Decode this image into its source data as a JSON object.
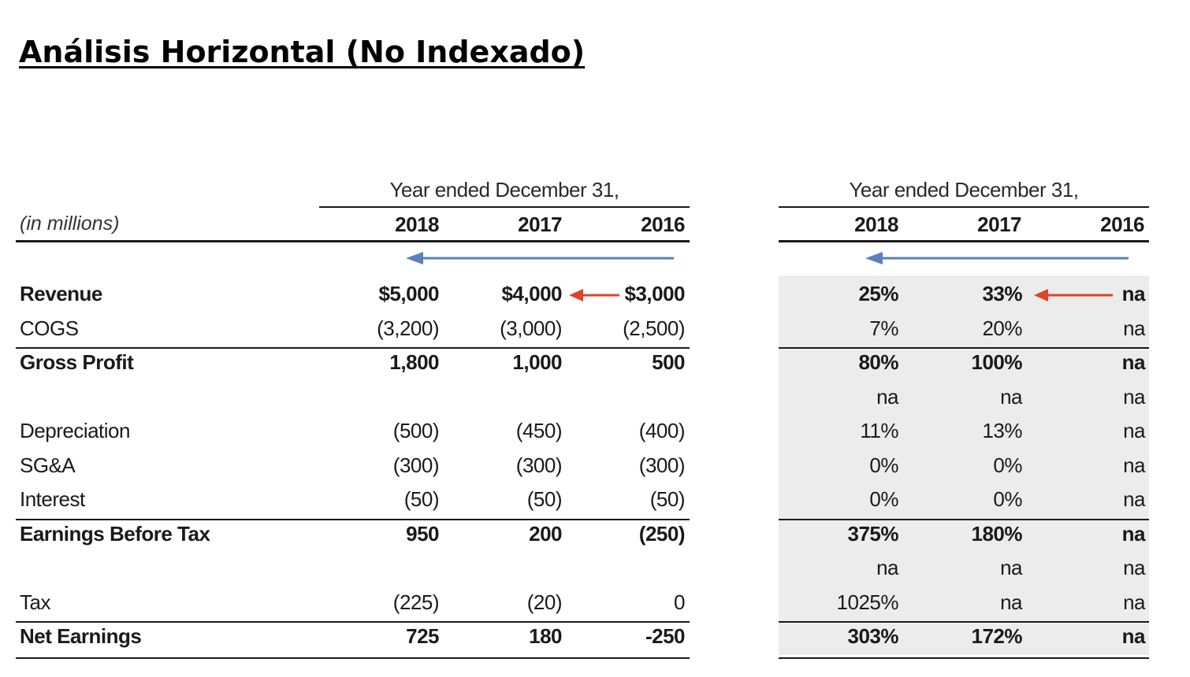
{
  "title": "Análisis Horizontal (No Indexado)",
  "left_table": {
    "group_header": "Year ended December 31,",
    "units_label": "(in millions)",
    "years": [
      "2018",
      "2017",
      "2016"
    ]
  },
  "right_table": {
    "group_header": "Year ended December 31,",
    "years": [
      "2018",
      "2017",
      "2016"
    ]
  },
  "rows": [
    {
      "label": "Revenue",
      "bold": true,
      "values": [
        "$5,000",
        "$4,000",
        "$3,000"
      ],
      "pct": [
        "25%",
        "33%",
        "na"
      ]
    },
    {
      "label": "COGS",
      "bold": false,
      "values": [
        "(3,200)",
        "(3,000)",
        "(2,500)"
      ],
      "pct": [
        "7%",
        "20%",
        "na"
      ]
    },
    {
      "label": "Gross Profit",
      "bold": true,
      "values": [
        "1,800",
        "1,000",
        "500"
      ],
      "pct": [
        "80%",
        "100%",
        "na"
      ]
    },
    {
      "label": "",
      "bold": false,
      "values": [
        "",
        "",
        ""
      ],
      "pct": [
        "na",
        "na",
        "na"
      ]
    },
    {
      "label": "Depreciation",
      "bold": false,
      "values": [
        "(500)",
        "(450)",
        "(400)"
      ],
      "pct": [
        "11%",
        "13%",
        "na"
      ]
    },
    {
      "label": "SG&A",
      "bold": false,
      "values": [
        "(300)",
        "(300)",
        "(300)"
      ],
      "pct": [
        "0%",
        "0%",
        "na"
      ]
    },
    {
      "label": "Interest",
      "bold": false,
      "values": [
        "(50)",
        "(50)",
        "(50)"
      ],
      "pct": [
        "0%",
        "0%",
        "na"
      ]
    },
    {
      "label": "Earnings Before Tax",
      "bold": true,
      "values": [
        "950",
        "200",
        "(250)"
      ],
      "pct": [
        "375%",
        "180%",
        "na"
      ]
    },
    {
      "label": "",
      "bold": false,
      "values": [
        "",
        "",
        ""
      ],
      "pct": [
        "na",
        "na",
        "na"
      ]
    },
    {
      "label": "Tax",
      "bold": false,
      "values": [
        "(225)",
        "(20)",
        "0"
      ],
      "pct": [
        "1025%",
        "na",
        "na"
      ]
    },
    {
      "label": "Net Earnings",
      "bold": true,
      "values": [
        "725",
        "180",
        "-250"
      ],
      "pct": [
        "303%",
        "172%",
        "na"
      ]
    }
  ],
  "colors": {
    "direction_arrow": "#5b7fbf",
    "highlight_arrow": "#e0432b",
    "shade": "#ececec"
  }
}
